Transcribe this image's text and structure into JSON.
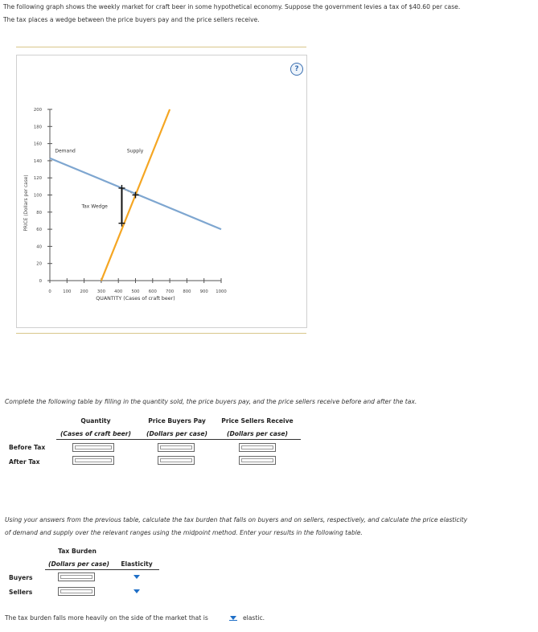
{
  "intro": {
    "line1": "The following graph shows the weekly market for craft beer in some hypothetical economy. Suppose the government levies a tax of $40.60 per case.",
    "line2": "The tax places a wedge between the price buyers pay and the price sellers receive."
  },
  "help_label": "?",
  "chart_data": {
    "type": "line",
    "xlabel": "QUANTITY (Cases of craft beer)",
    "ylabel": "PRICE (Dollars per case)",
    "xlim": [
      0,
      1000
    ],
    "ylim": [
      0,
      200
    ],
    "x_ticks": [
      "0",
      "100",
      "200",
      "300",
      "400",
      "500",
      "600",
      "700",
      "800",
      "900",
      "1000"
    ],
    "y_ticks": [
      "0",
      "20",
      "40",
      "60",
      "80",
      "100",
      "120",
      "140",
      "160",
      "180",
      "200"
    ],
    "series": [
      {
        "name": "Demand",
        "color": "#7ea6d0",
        "points": [
          [
            0,
            143
          ],
          [
            1000,
            60
          ]
        ]
      },
      {
        "name": "Supply",
        "color": "#f5a623",
        "points": [
          [
            300,
            0
          ],
          [
            700,
            200
          ]
        ]
      }
    ],
    "annotations": {
      "tax_wedge_label": "Tax Wedge",
      "buyer_point": [
        420,
        108
      ],
      "seller_point": [
        420,
        67
      ],
      "equilibrium_point": [
        500,
        100
      ]
    }
  },
  "table1": {
    "instruction": "Complete the following table by filling in the quantity sold, the price buyers pay, and the price sellers receive before and after the tax.",
    "col1_title": "Quantity",
    "col1_sub": "(Cases of craft beer)",
    "col2_title": "Price Buyers Pay",
    "col2_sub": "(Dollars per case)",
    "col3_title": "Price Sellers Receive",
    "col3_sub": "(Dollars per case)",
    "row1": "Before Tax",
    "row2": "After Tax"
  },
  "table2": {
    "instruction_line1": "Using your answers from the previous table, calculate the tax burden that falls on buyers and on sellers, respectively, and calculate the price elasticity",
    "instruction_line2": "of demand and supply over the relevant ranges using the midpoint method. Enter your results in the following table.",
    "col1_title": "Tax Burden",
    "col1_sub": "(Dollars per case)",
    "col2_title": "Elasticity",
    "row1": "Buyers",
    "row2": "Sellers"
  },
  "final": {
    "prefix": "The tax burden falls more heavily on the side of the market that is",
    "suffix": "elastic."
  }
}
